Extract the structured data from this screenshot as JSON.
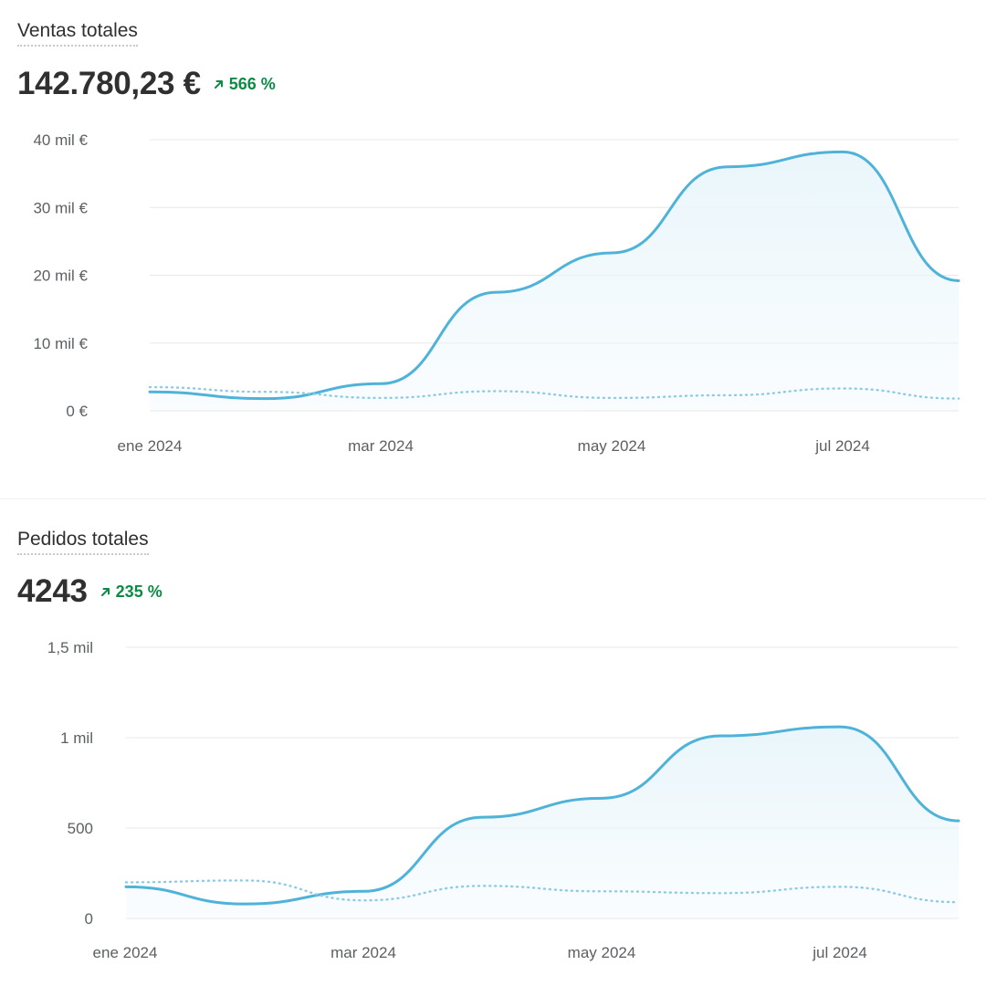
{
  "colors": {
    "line": "#4fb3d9",
    "line_dark": "#3a97c4",
    "area": "#eaf6fb",
    "grid": "#e8e8e8",
    "delta_up": "#0c8a46"
  },
  "panels": [
    {
      "title": "Ventas totales",
      "total": "142.780,23 €",
      "delta_icon": "arrow-up-right-icon",
      "delta": "566 %"
    },
    {
      "title": "Pedidos totales",
      "total": "4243",
      "delta_icon": "arrow-up-right-icon",
      "delta": "235 %"
    }
  ],
  "chart_data": [
    {
      "type": "area",
      "title": "Ventas totales",
      "x_tick_labels": [
        "ene 2024",
        "mar 2024",
        "may 2024",
        "jul 2024"
      ],
      "y_tick_labels": [
        "40 mil €",
        "30 mil €",
        "20 mil €",
        "10 mil €",
        "0 €"
      ],
      "y_ticks": [
        40000,
        30000,
        20000,
        10000,
        0
      ],
      "ylim": [
        0,
        40000
      ],
      "x": [
        "2024-01",
        "2024-02",
        "2024-03",
        "2024-04",
        "2024-05",
        "2024-06",
        "2024-07",
        "2024-08"
      ],
      "series": [
        {
          "style": "solid",
          "values": [
            2800,
            1800,
            4000,
            17500,
            23300,
            36000,
            38200,
            19200
          ]
        },
        {
          "style": "dotted",
          "values": [
            3500,
            2800,
            1900,
            2900,
            1900,
            2300,
            3300,
            1800
          ]
        }
      ],
      "grid": true,
      "legend": "none"
    },
    {
      "type": "area",
      "title": "Pedidos totales",
      "x_tick_labels": [
        "ene 2024",
        "mar 2024",
        "may 2024",
        "jul 2024"
      ],
      "y_tick_labels": [
        "1,5 mil",
        "1 mil",
        "500",
        "0"
      ],
      "y_ticks": [
        1500,
        1000,
        500,
        0
      ],
      "ylim": [
        0,
        1500
      ],
      "x": [
        "2024-01",
        "2024-02",
        "2024-03",
        "2024-04",
        "2024-05",
        "2024-06",
        "2024-07",
        "2024-08"
      ],
      "series": [
        {
          "style": "solid",
          "values": [
            175,
            80,
            150,
            560,
            665,
            1010,
            1060,
            540
          ]
        },
        {
          "style": "dotted",
          "values": [
            200,
            210,
            100,
            180,
            150,
            140,
            175,
            90
          ]
        }
      ],
      "grid": true,
      "legend": "none"
    }
  ]
}
